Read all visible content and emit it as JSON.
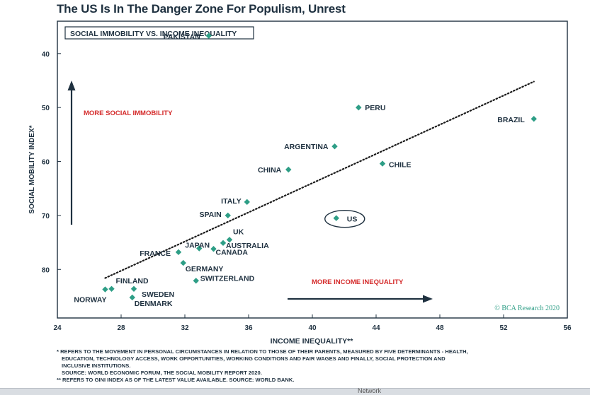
{
  "title": "The US Is In The Danger Zone For Populism, Unrest",
  "chart_data": {
    "type": "scatter",
    "panel_label": "SOCIAL IMMOBILITY VS. INCOME INEQUALITY",
    "xlabel": "INCOME INEQUALITY**",
    "ylabel": "SOCIAL MOBILITY INDEX*",
    "xlim": [
      24,
      56
    ],
    "ylim": [
      89,
      34
    ],
    "y_inverted": true,
    "xticks": [
      24,
      28,
      32,
      36,
      40,
      44,
      48,
      52,
      56
    ],
    "yticks": [
      40,
      50,
      60,
      70,
      80
    ],
    "grid": false,
    "marker_color": "#2e9e86",
    "points": [
      {
        "label": "PAKISTAN",
        "x": 33.5,
        "y": 36.7
      },
      {
        "label": "PERU",
        "x": 42.9,
        "y": 50.0
      },
      {
        "label": "BRAZIL",
        "x": 53.9,
        "y": 52.1
      },
      {
        "label": "ARGENTINA",
        "x": 41.4,
        "y": 57.2
      },
      {
        "label": "CHILE",
        "x": 44.4,
        "y": 60.4
      },
      {
        "label": "CHINA",
        "x": 38.5,
        "y": 61.5
      },
      {
        "label": "ITALY",
        "x": 35.9,
        "y": 67.5
      },
      {
        "label": "SPAIN",
        "x": 34.7,
        "y": 70.0
      },
      {
        "label": "US",
        "x": 41.5,
        "y": 70.5
      },
      {
        "label": "UK",
        "x": 34.8,
        "y": 74.5
      },
      {
        "label": "AUSTRALIA",
        "x": 34.4,
        "y": 75.1
      },
      {
        "label": "JAPAN",
        "x": 32.9,
        "y": 76.1
      },
      {
        "label": "CANADA",
        "x": 33.8,
        "y": 76.2
      },
      {
        "label": "FRANCE",
        "x": 31.6,
        "y": 76.8
      },
      {
        "label": "GERMANY",
        "x": 31.9,
        "y": 78.8
      },
      {
        "label": "SWITZERLAND",
        "x": 32.7,
        "y": 82.1
      },
      {
        "label": "FINLAND",
        "x": 27.4,
        "y": 83.6
      },
      {
        "label": "NORWAY",
        "x": 27.0,
        "y": 83.7
      },
      {
        "label": "SWEDEN",
        "x": 28.8,
        "y": 83.6
      },
      {
        "label": "DENMARK",
        "x": 28.7,
        "y": 85.2
      }
    ],
    "trendline": {
      "style": "dotted",
      "x": [
        27.0,
        53.9
      ],
      "y": [
        81.6,
        45.2
      ]
    },
    "annotations": {
      "more_social_immobility": "MORE SOCIAL IMMOBILITY",
      "more_income_inequality": "MORE INCOME INEQUALITY",
      "annotation_color": "#d42a2a",
      "arrow_color": "#1f3140"
    },
    "highlight": "US",
    "credit": "© BCA Research 2020",
    "credit_color": "#2e9e86"
  },
  "footnotes": [
    "* REFERS TO THE MOVEMENT IN PERSONAL CIRCUMSTANCES IN RELATION TO THOSE OF THEIR PARENTS, MEASURED BY FIVE DETERMINANTS - HEALTH,",
    "EDUCATION, TECHNOLOGY ACCESS, WORK OPPORTUNITIES, WORKING CONDITIONS AND FAIR WAGES AND FINALLY, SOCIAL PROTECTION AND",
    "INCLUSIVE INSTITUTIONS.",
    "SOURCE: WORLD ECONOMIC FORUM, THE SOCIAL MOBILITY REPORT 2020.",
    "** REFERS TO GINI INDEX AS OF THE LATEST VALUE AVAILABLE. SOURCE: WORLD BANK."
  ],
  "bottom_strip_text": "Network"
}
